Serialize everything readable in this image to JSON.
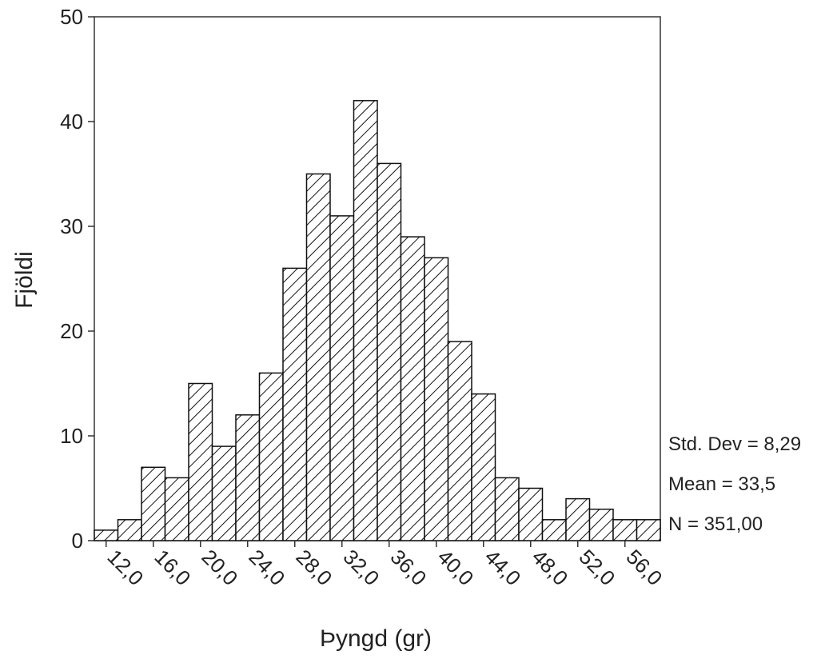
{
  "chart_data": {
    "type": "histogram",
    "xlabel": "Þyngd (gr)",
    "ylabel": "Fjöldi",
    "bins": [
      11,
      13,
      15,
      17,
      19,
      21,
      23,
      25,
      27,
      29,
      31,
      33,
      35,
      37,
      39,
      41,
      43,
      45,
      47,
      49,
      51,
      53,
      55,
      57,
      59
    ],
    "counts": [
      1,
      2,
      7,
      6,
      15,
      9,
      12,
      16,
      26,
      35,
      31,
      42,
      36,
      29,
      27,
      19,
      14,
      6,
      5,
      2,
      4,
      3,
      2,
      2
    ],
    "xlim": [
      11,
      59
    ],
    "ylim": [
      0,
      50
    ],
    "xticks": [
      {
        "value": 12,
        "label": "12,0"
      },
      {
        "value": 16,
        "label": "16,0"
      },
      {
        "value": 20,
        "label": "20,0"
      },
      {
        "value": 24,
        "label": "24,0"
      },
      {
        "value": 28,
        "label": "28,0"
      },
      {
        "value": 32,
        "label": "32,0"
      },
      {
        "value": 36,
        "label": "36,0"
      },
      {
        "value": 40,
        "label": "40,0"
      },
      {
        "value": 44,
        "label": "44,0"
      },
      {
        "value": 48,
        "label": "48,0"
      },
      {
        "value": 52,
        "label": "52,0"
      },
      {
        "value": 56,
        "label": "56,0"
      }
    ],
    "yticks": [
      0,
      10,
      20,
      30,
      40,
      50
    ],
    "annotations": [
      "Std. Dev = 8,29",
      "Mean = 33,5",
      "N = 351,00"
    ]
  }
}
